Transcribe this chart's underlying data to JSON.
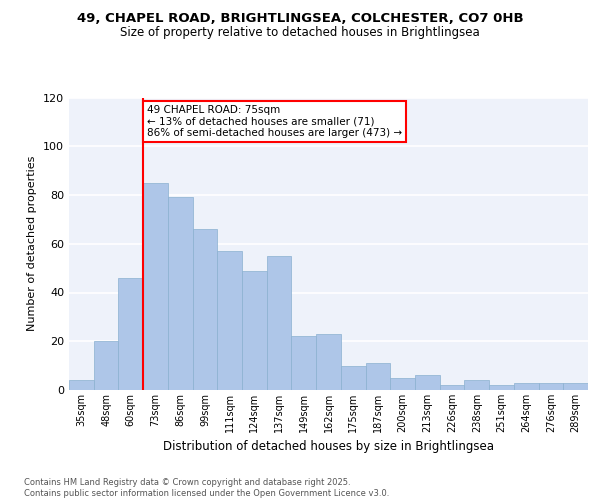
{
  "title_line1": "49, CHAPEL ROAD, BRIGHTLINGSEA, COLCHESTER, CO7 0HB",
  "title_line2": "Size of property relative to detached houses in Brightlingsea",
  "xlabel": "Distribution of detached houses by size in Brightlingsea",
  "ylabel": "Number of detached properties",
  "footer_line1": "Contains HM Land Registry data © Crown copyright and database right 2025.",
  "footer_line2": "Contains public sector information licensed under the Open Government Licence v3.0.",
  "categories": [
    "35sqm",
    "48sqm",
    "60sqm",
    "73sqm",
    "86sqm",
    "99sqm",
    "111sqm",
    "124sqm",
    "137sqm",
    "149sqm",
    "162sqm",
    "175sqm",
    "187sqm",
    "200sqm",
    "213sqm",
    "226sqm",
    "238sqm",
    "251sqm",
    "264sqm",
    "276sqm",
    "289sqm"
  ],
  "values": [
    4,
    20,
    46,
    85,
    79,
    66,
    57,
    49,
    55,
    22,
    23,
    10,
    11,
    5,
    6,
    2,
    4,
    2,
    3,
    3,
    3
  ],
  "bar_color": "#aec6e8",
  "bar_edge_color": "#8ab0d0",
  "vline_color": "red",
  "vline_index": 2.5,
  "annotation_title": "49 CHAPEL ROAD: 75sqm",
  "annotation_line1": "← 13% of detached houses are smaller (71)",
  "annotation_line2": "86% of semi-detached houses are larger (473) →",
  "annotation_box_color": "#ffffff",
  "annotation_box_edge": "red",
  "ylim": [
    0,
    120
  ],
  "yticks": [
    0,
    20,
    40,
    60,
    80,
    100,
    120
  ],
  "bg_color": "#eef2fa",
  "grid_color": "#ffffff",
  "title_fontsize": 9.5,
  "subtitle_fontsize": 8.5,
  "xlabel_fontsize": 8.5,
  "ylabel_fontsize": 8,
  "tick_fontsize": 7,
  "annotation_fontsize": 7.5
}
